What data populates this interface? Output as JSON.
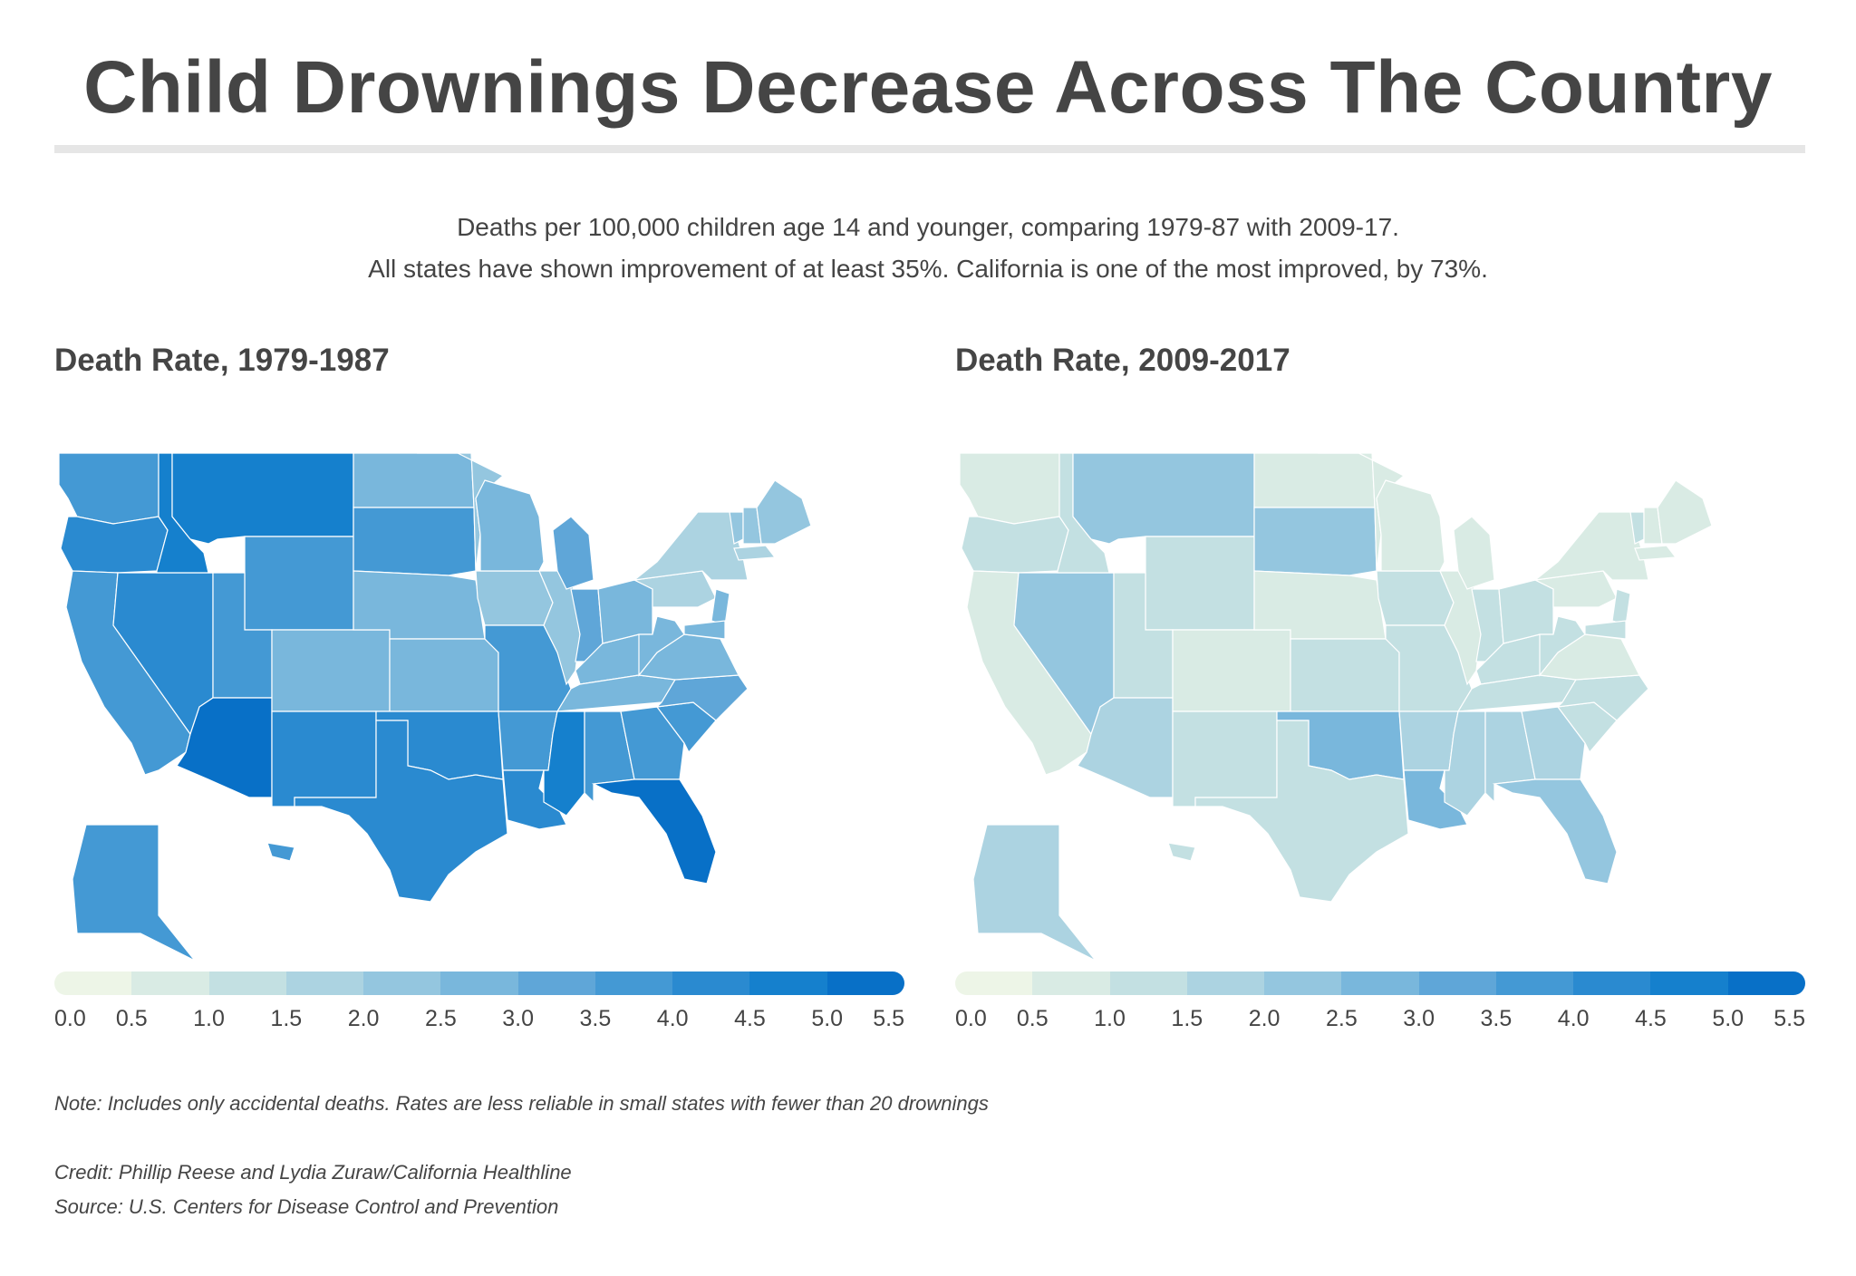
{
  "title": "Child Drownings Decrease Across The Country",
  "subtitle": {
    "line1": "Deaths per 100,000 children age 14 and younger, comparing 1979-87 with 2009-17.",
    "line2": "All states have shown improvement of at least 35%. California is one of the most improved, by 73%."
  },
  "maps": [
    {
      "title": "Death Rate, 1979-1987",
      "state_bins": {
        "WA": 7,
        "OR": 8,
        "CA": 7,
        "NV": 8,
        "ID": 9,
        "MT": 9,
        "WY": 7,
        "UT": 7,
        "AZ": 10,
        "CO": 5,
        "NM": 8,
        "ND": 5,
        "SD": 7,
        "NE": 5,
        "KS": 5,
        "OK": 8,
        "TX": 8,
        "MN": 4,
        "IA": 4,
        "MO": 7,
        "AR": 7,
        "LA": 8,
        "WI": 5,
        "IL": 4,
        "MI": 6,
        "IN": 6,
        "KY": 5,
        "TN": 5,
        "MS": 9,
        "AL": 7,
        "OH": 5,
        "GA": 7,
        "FL": 10,
        "SC": 7,
        "NC": 6,
        "VA": 5,
        "WV": 5,
        "PA": 3,
        "NY": 3,
        "VT": 4,
        "NH": 4,
        "ME": 4,
        "MA": 3,
        "NJ": 5,
        "MD": 5,
        "AK": 7,
        "HI": 7
      }
    },
    {
      "title": "Death Rate, 2009-2017",
      "state_bins": {
        "WA": 1,
        "OR": 2,
        "CA": 1,
        "NV": 4,
        "ID": 2,
        "MT": 4,
        "WY": 2,
        "UT": 2,
        "AZ": 3,
        "CO": 1,
        "NM": 2,
        "ND": 1,
        "SD": 4,
        "NE": 1,
        "KS": 2,
        "OK": 5,
        "TX": 2,
        "MN": 1,
        "IA": 2,
        "MO": 2,
        "AR": 3,
        "LA": 5,
        "WI": 1,
        "IL": 1,
        "MI": 1,
        "IN": 2,
        "KY": 2,
        "TN": 2,
        "MS": 3,
        "AL": 3,
        "OH": 2,
        "GA": 3,
        "FL": 4,
        "SC": 2,
        "NC": 2,
        "VA": 1,
        "WV": 2,
        "PA": 1,
        "NY": 1,
        "VT": 2,
        "NH": 1,
        "ME": 1,
        "MA": 1,
        "NJ": 2,
        "MD": 2,
        "AK": 3,
        "HI": 2
      }
    }
  ],
  "legend": {
    "ticks": [
      "0.0",
      "0.5",
      "1.0",
      "1.5",
      "2.0",
      "2.5",
      "3.0",
      "3.5",
      "4.0",
      "4.5",
      "5.0",
      "5.5"
    ],
    "colors": [
      "#edf5e7",
      "#d9ebe4",
      "#c3e0e2",
      "#acd3e1",
      "#94c6df",
      "#79b7dc",
      "#5fa6d8",
      "#4499d4",
      "#2a8ad0",
      "#1580cd",
      "#0870c7"
    ]
  },
  "notes": {
    "note": "Note: Includes only accidental deaths. Rates are less reliable in small states with fewer than 20 drownings",
    "credit": "Credit: Phillip Reese and Lydia Zuraw/California Healthline",
    "source": "Source: U.S. Centers for Disease Control and Prevention"
  }
}
